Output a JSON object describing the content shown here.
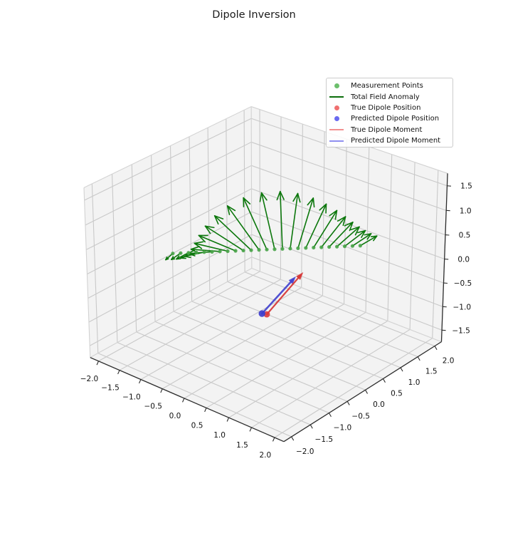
{
  "title": "Dipole Inversion",
  "legend": {
    "items": [
      {
        "label": "Measurement Points",
        "marker": "dot",
        "color": "#6cbf6c"
      },
      {
        "label": "Total Field Anomaly",
        "marker": "line",
        "color": "#0b6e0b"
      },
      {
        "label": "True Dipole Position",
        "marker": "dot",
        "color": "#f07070"
      },
      {
        "label": "Predicted Dipole Position",
        "marker": "dot",
        "color": "#6a6af0"
      },
      {
        "label": "True Dipole Moment",
        "marker": "line",
        "color": "#f29090"
      },
      {
        "label": "Predicted Dipole Moment",
        "marker": "line",
        "color": "#9090f0"
      }
    ]
  },
  "axes": {
    "xlim": [
      -2.2,
      2.2
    ],
    "ylim": [
      -2.2,
      2.2
    ],
    "zlim": [
      -1.75,
      1.75
    ],
    "x_ticks": [
      -2.0,
      -1.5,
      -1.0,
      -0.5,
      0.0,
      0.5,
      1.0,
      1.5,
      2.0
    ],
    "y_ticks": [
      -2.0,
      -1.5,
      -1.0,
      -0.5,
      0.0,
      0.5,
      1.0,
      1.5,
      2.0
    ],
    "z_ticks": [
      -1.5,
      -1.0,
      -0.5,
      0.0,
      0.5,
      1.0,
      1.5
    ]
  },
  "chart_data": {
    "type": "quiver3d",
    "title": "Dipole Inversion",
    "view": {
      "elev": 27.5,
      "azim": -50.2,
      "dist": 20
    },
    "measurement_line": {
      "start": [
        -1.15,
        -1.15,
        0.35
      ],
      "end": [
        1.15,
        1.15,
        0.35
      ],
      "n_points": 25
    },
    "true_dipole": {
      "position": [
        0.0,
        0.0,
        -1.0
      ],
      "moment": [
        0.45,
        0.45,
        0.85
      ]
    },
    "predicted_dipole": {
      "position": [
        -0.06,
        -0.06,
        -0.98
      ],
      "moment": [
        0.42,
        0.42,
        0.75
      ]
    },
    "field_arrow_scale": 1.55,
    "colors": {
      "field_arrow": "#0c770c",
      "measurement_dot": "#4aa44a",
      "true_position": "#dd3a3a",
      "predicted_position": "#3d3dcc",
      "true_moment": "#d63434",
      "predicted_moment": "#4343cf",
      "grid": "#c9c9c9",
      "pane": "#f3f3f3",
      "pane_edge": "#d2d2d2",
      "axis_line": "#2b2b2b"
    }
  }
}
